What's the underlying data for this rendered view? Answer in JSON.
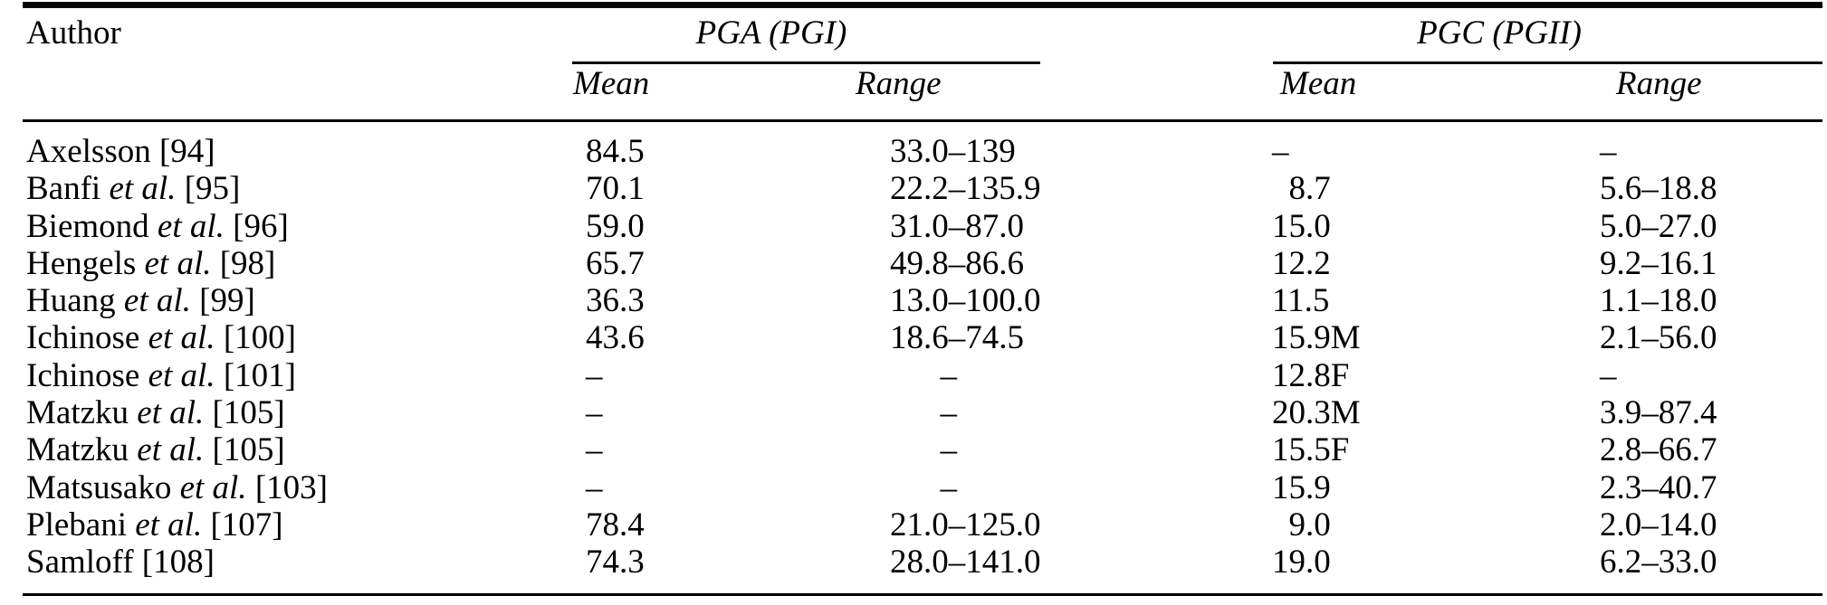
{
  "header": {
    "author": "Author",
    "pga_group": "PGA (PGI)",
    "pgc_group": "PGC (PGII)",
    "pga_mean": "Mean",
    "pga_range": "Range",
    "pgc_mean": "Mean",
    "pgc_range": "Range"
  },
  "colors": {
    "background": "#ffffff",
    "text": "#000000",
    "rule": "#000000"
  },
  "rows": [
    {
      "author_pre": "Axelsson ",
      "author_etal": "",
      "author_post": "[94]",
      "pga_mean": "84.5",
      "pga_range": "33.0–139",
      "pgc_mean": "–",
      "pgc_range": "–"
    },
    {
      "author_pre": "Banfi ",
      "author_etal": "et al.",
      "author_post": " [95]",
      "pga_mean": "70.1",
      "pga_range": "22.2–135.9",
      "pgc_mean": " 8.7",
      "pgc_range": "5.6–18.8"
    },
    {
      "author_pre": "Biemond ",
      "author_etal": "et al.",
      "author_post": " [96]",
      "pga_mean": "59.0",
      "pga_range": "31.0–87.0",
      "pgc_mean": "15.0",
      "pgc_range": "5.0–27.0"
    },
    {
      "author_pre": "Hengels ",
      "author_etal": "et al.",
      "author_post": " [98]",
      "pga_mean": "65.7",
      "pga_range": "49.8–86.6",
      "pgc_mean": "12.2",
      "pgc_range": "9.2–16.1"
    },
    {
      "author_pre": "Huang ",
      "author_etal": "et al.",
      "author_post": " [99]",
      "pga_mean": "36.3",
      "pga_range": "13.0–100.0",
      "pgc_mean": "11.5",
      "pgc_range": "1.1–18.0"
    },
    {
      "author_pre": "Ichinose ",
      "author_etal": "et al.",
      "author_post": " [100]",
      "pga_mean": "43.6",
      "pga_range": "18.6–74.5",
      "pgc_mean": "15.9M",
      "pgc_range": "2.1–56.0"
    },
    {
      "author_pre": "Ichinose ",
      "author_etal": "et al.",
      "author_post": " [101]",
      "pga_mean": "–",
      "pga_range": "   –",
      "pgc_mean": "12.8F",
      "pgc_range": "–"
    },
    {
      "author_pre": "Matzku ",
      "author_etal": "et al.",
      "author_post": " [105]",
      "pga_mean": "–",
      "pga_range": "   –",
      "pgc_mean": "20.3M",
      "pgc_range": "3.9–87.4"
    },
    {
      "author_pre": "Matzku ",
      "author_etal": "et al.",
      "author_post": " [105]",
      "pga_mean": "–",
      "pga_range": "   –",
      "pgc_mean": "15.5F",
      "pgc_range": "2.8–66.7"
    },
    {
      "author_pre": "Matsusako ",
      "author_etal": "et al.",
      "author_post": " [103]",
      "pga_mean": "–",
      "pga_range": "   –",
      "pgc_mean": "15.9",
      "pgc_range": "2.3–40.7"
    },
    {
      "author_pre": "Plebani ",
      "author_etal": "et al.",
      "author_post": " [107]",
      "pga_mean": "78.4",
      "pga_range": "21.0–125.0",
      "pgc_mean": " 9.0",
      "pgc_range": "2.0–14.0"
    },
    {
      "author_pre": "Samloff ",
      "author_etal": "",
      "author_post": "[108]",
      "pga_mean": "74.3",
      "pga_range": "28.0–141.0",
      "pgc_mean": "19.0",
      "pgc_range": "6.2–33.0"
    }
  ]
}
